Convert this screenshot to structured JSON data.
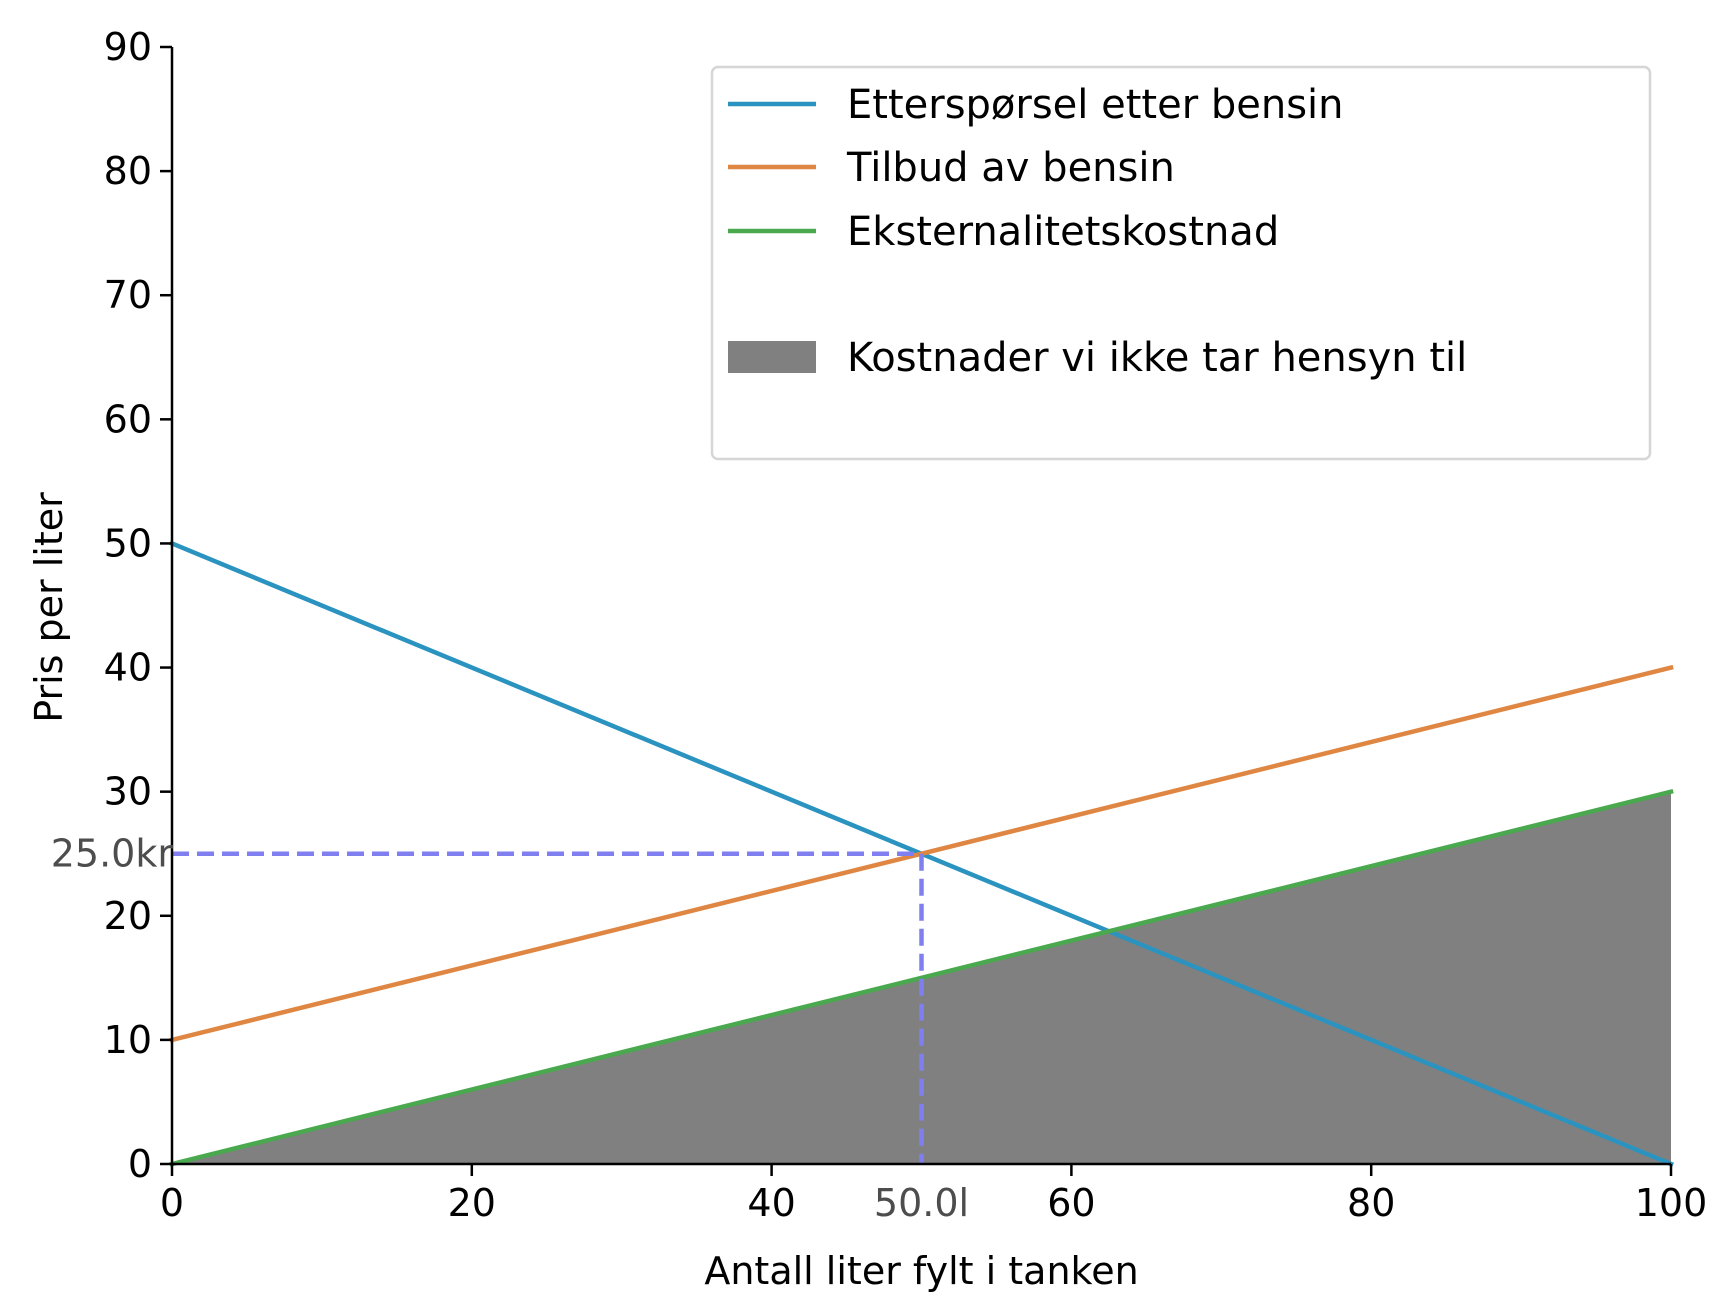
{
  "chart_data": {
    "type": "line",
    "title": "",
    "xlabel": "Antall liter fylt i tanken",
    "ylabel": "Pris per liter",
    "xlim": [
      0,
      100
    ],
    "ylim": [
      0,
      90
    ],
    "xticks": [
      0,
      20,
      40,
      60,
      80,
      100
    ],
    "yticks": [
      0,
      10,
      20,
      30,
      40,
      50,
      60,
      70,
      80,
      90
    ],
    "grid": false,
    "legend_position": "top-right",
    "series": [
      {
        "name": "Etterspørsel etter bensin",
        "color": "#2b93bf",
        "x": [
          0,
          100
        ],
        "y": [
          50,
          0
        ]
      },
      {
        "name": "Tilbud av bensin",
        "color": "#e08643",
        "x": [
          0,
          100
        ],
        "y": [
          10,
          40
        ]
      },
      {
        "name": "Eksternalitetskostnad",
        "color": "#4aa84e",
        "x": [
          0,
          100
        ],
        "y": [
          0,
          30
        ]
      }
    ],
    "area": {
      "name": "Kostnader vi ikke tar hensyn til",
      "color": "#808080",
      "x": [
        0,
        100
      ],
      "y_lower": [
        0,
        0
      ],
      "y_upper": [
        0,
        30
      ]
    },
    "equilibrium": {
      "x": 50,
      "y": 25,
      "x_label": "50.0l",
      "y_label": "25.0kr",
      "color": "#7f7fef"
    }
  }
}
